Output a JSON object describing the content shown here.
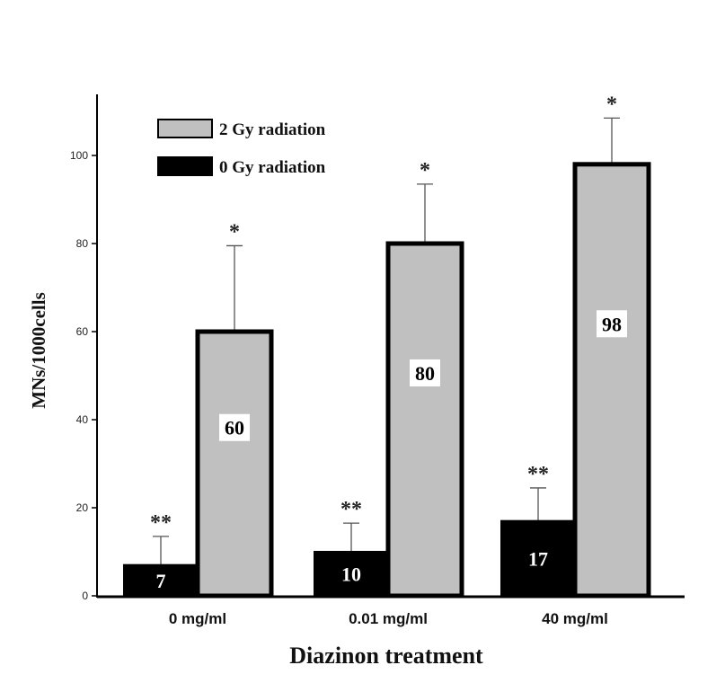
{
  "chart_data": {
    "type": "bar",
    "xlabel": "Diazinon treatment",
    "ylabel": "MNs/1000cells",
    "categories": [
      "0 mg/ml",
      "0.01 mg/ml",
      "40 mg/ml"
    ],
    "ylim": [
      0,
      110
    ],
    "yticks": [
      0,
      20,
      40,
      60,
      80,
      100
    ],
    "grid": false,
    "legend_position": "top-left",
    "series": [
      {
        "name": "0 Gy radiation",
        "color": "#000000",
        "values": [
          7,
          10,
          17
        ],
        "errors": [
          6.5,
          6.5,
          7.5
        ],
        "value_labels": [
          "7",
          "10",
          "17"
        ],
        "significance": [
          "**",
          "**",
          "**"
        ]
      },
      {
        "name": "2 Gy radiation",
        "color": "#c0c0c0",
        "values": [
          60,
          80,
          98
        ],
        "errors": [
          19.5,
          13.5,
          10.5
        ],
        "value_labels": [
          "60",
          "80",
          "98"
        ],
        "significance": [
          "*",
          "*",
          "*"
        ]
      }
    ],
    "legend_order": [
      "2 Gy radiation",
      "0 Gy radiation"
    ]
  }
}
